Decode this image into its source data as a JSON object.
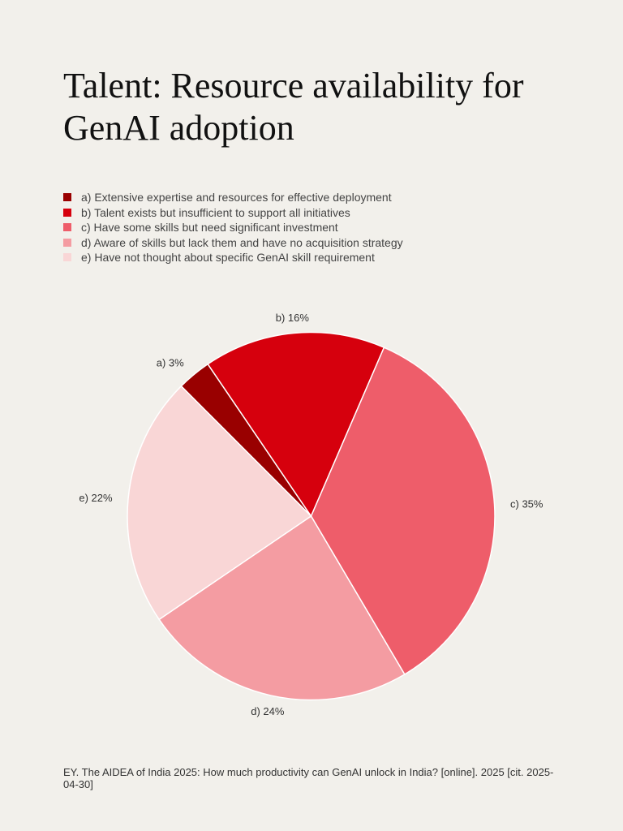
{
  "title": "Talent: Resource availability for GenAI adoption",
  "chart_data": {
    "type": "pie",
    "title": "Talent: Resource availability for GenAI adoption",
    "start_angle_deg": -45,
    "direction": "clockwise",
    "legend_placement": "top-left",
    "slices": [
      {
        "key": "a",
        "legend": "a) Extensive expertise and resources for effective deployment",
        "label": "a) 3%",
        "value": 3,
        "color": "#990000"
      },
      {
        "key": "b",
        "legend": "b) Talent exists but insufficient to support all initiatives",
        "label": "b) 16%",
        "value": 16,
        "color": "#d6000d"
      },
      {
        "key": "c",
        "legend": "c) Have some skills but need significant investment",
        "label": "c) 35%",
        "value": 35,
        "color": "#ee5d6a"
      },
      {
        "key": "d",
        "legend": "d) Aware of skills but lack them and have no acquisition strategy",
        "label": "d) 24%",
        "value": 24,
        "color": "#f49ca2"
      },
      {
        "key": "e",
        "legend": "e) Have not thought about specific GenAI skill requirement",
        "label": "e) 22%",
        "value": 22,
        "color": "#f9d6d6"
      }
    ]
  },
  "source": "EY. The AIDEA of India 2025: How much productivity can GenAI unlock in India? [online]. 2025 [cit. 2025-04-30]"
}
